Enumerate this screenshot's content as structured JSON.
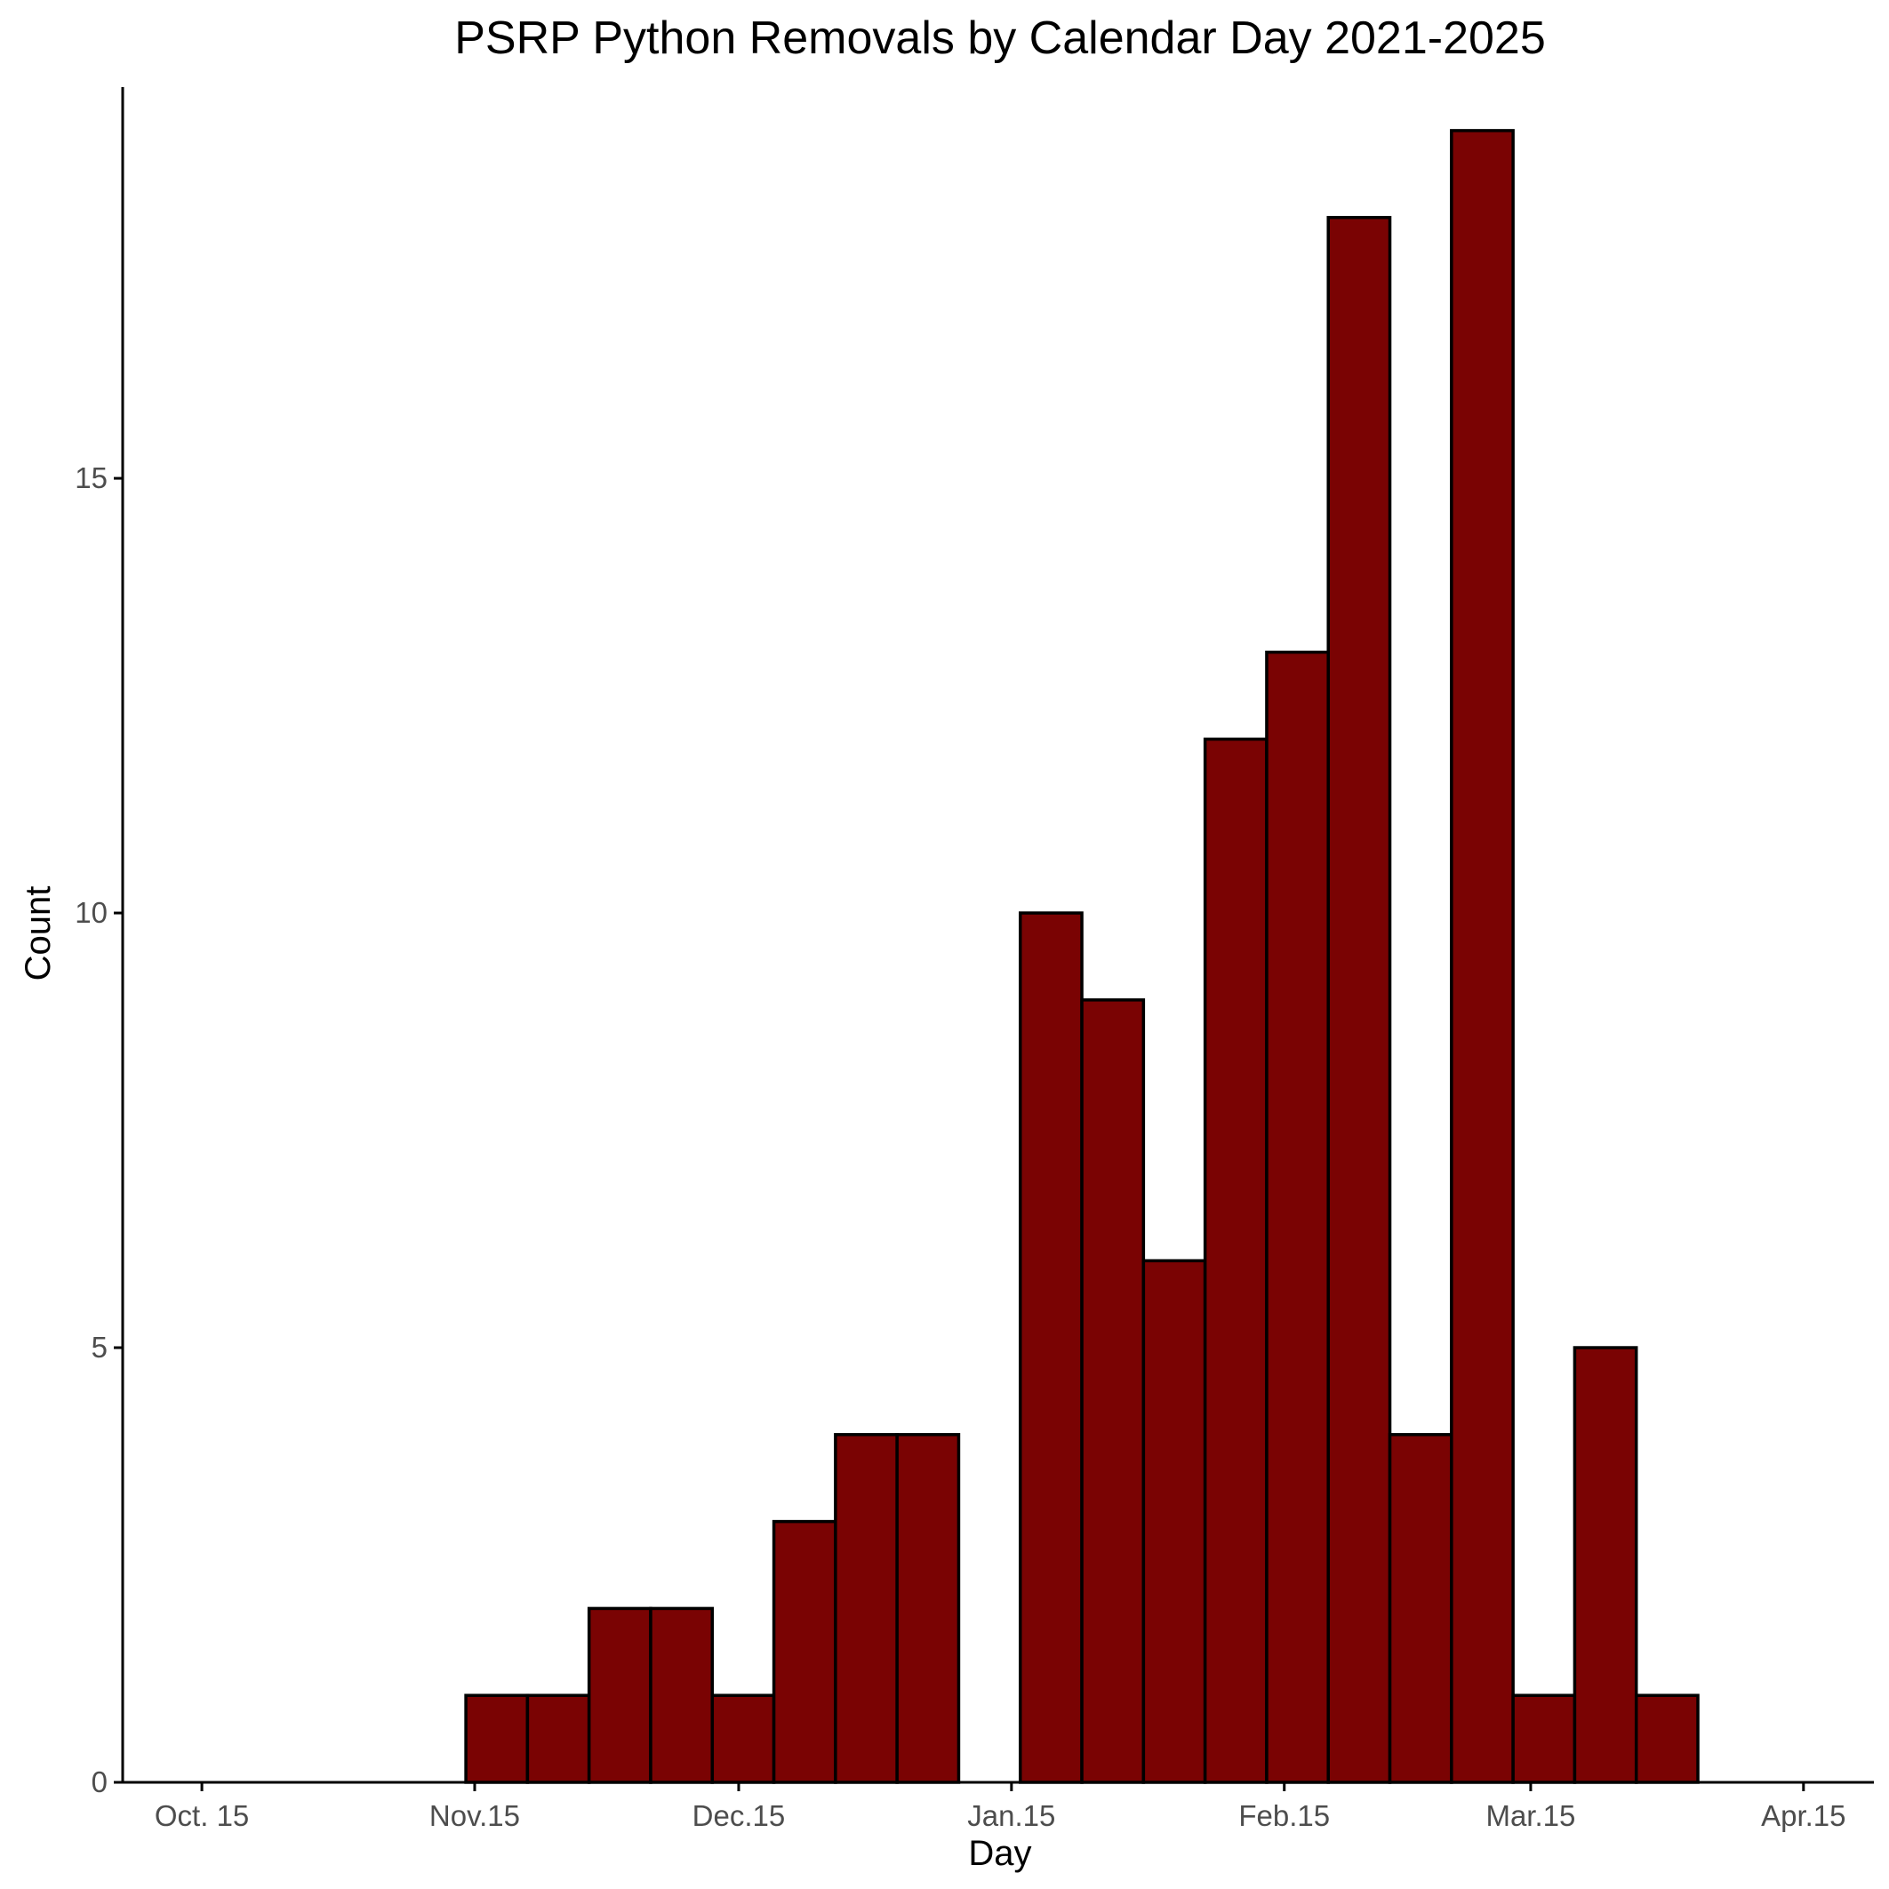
{
  "chart_data": {
    "type": "bar",
    "title": "PSRP Python Removals by Calendar Day 2021-2025",
    "xlabel": "Day",
    "ylabel": "Count",
    "bar_color": "#7a0303",
    "bar_outline_color": "#000000",
    "grid": false,
    "legend": "none",
    "x_domain": [
      "2020-10-06",
      "2021-04-23"
    ],
    "ylim": [
      0,
      19.5
    ],
    "x_ticks": [
      {
        "date": "2020-10-15",
        "label": "Oct. 15"
      },
      {
        "date": "2020-11-15",
        "label": "Nov.15"
      },
      {
        "date": "2020-12-15",
        "label": "Dec.15"
      },
      {
        "date": "2021-01-15",
        "label": "Jan.15"
      },
      {
        "date": "2021-02-15",
        "label": "Feb.15"
      },
      {
        "date": "2021-03-15",
        "label": "Mar.15"
      },
      {
        "date": "2021-04-15",
        "label": "Apr.15"
      }
    ],
    "y_ticks": [
      0,
      5,
      10,
      15
    ],
    "bins": [
      {
        "start": "2020-11-14",
        "end": "2020-11-21",
        "value": 1
      },
      {
        "start": "2020-11-21",
        "end": "2020-11-28",
        "value": 1
      },
      {
        "start": "2020-11-28",
        "end": "2020-12-05",
        "value": 2
      },
      {
        "start": "2020-12-05",
        "end": "2020-12-12",
        "value": 2
      },
      {
        "start": "2020-12-12",
        "end": "2020-12-19",
        "value": 1
      },
      {
        "start": "2020-12-19",
        "end": "2020-12-26",
        "value": 3
      },
      {
        "start": "2020-12-26",
        "end": "2021-01-02",
        "value": 4
      },
      {
        "start": "2021-01-02",
        "end": "2021-01-09",
        "value": 4
      },
      {
        "start": "2021-01-09",
        "end": "2021-01-16",
        "value": 0
      },
      {
        "start": "2021-01-16",
        "end": "2021-01-23",
        "value": 10
      },
      {
        "start": "2021-01-23",
        "end": "2021-01-30",
        "value": 9
      },
      {
        "start": "2021-01-30",
        "end": "2021-02-06",
        "value": 6
      },
      {
        "start": "2021-02-06",
        "end": "2021-02-13",
        "value": 12
      },
      {
        "start": "2021-02-13",
        "end": "2021-02-20",
        "value": 13
      },
      {
        "start": "2021-02-20",
        "end": "2021-02-27",
        "value": 18
      },
      {
        "start": "2021-02-27",
        "end": "2021-03-06",
        "value": 4
      },
      {
        "start": "2021-03-06",
        "end": "2021-03-13",
        "value": 19
      },
      {
        "start": "2021-03-13",
        "end": "2021-03-20",
        "value": 1
      },
      {
        "start": "2021-03-20",
        "end": "2021-03-27",
        "value": 5
      },
      {
        "start": "2021-03-27",
        "end": "2021-04-03",
        "value": 1
      }
    ]
  }
}
